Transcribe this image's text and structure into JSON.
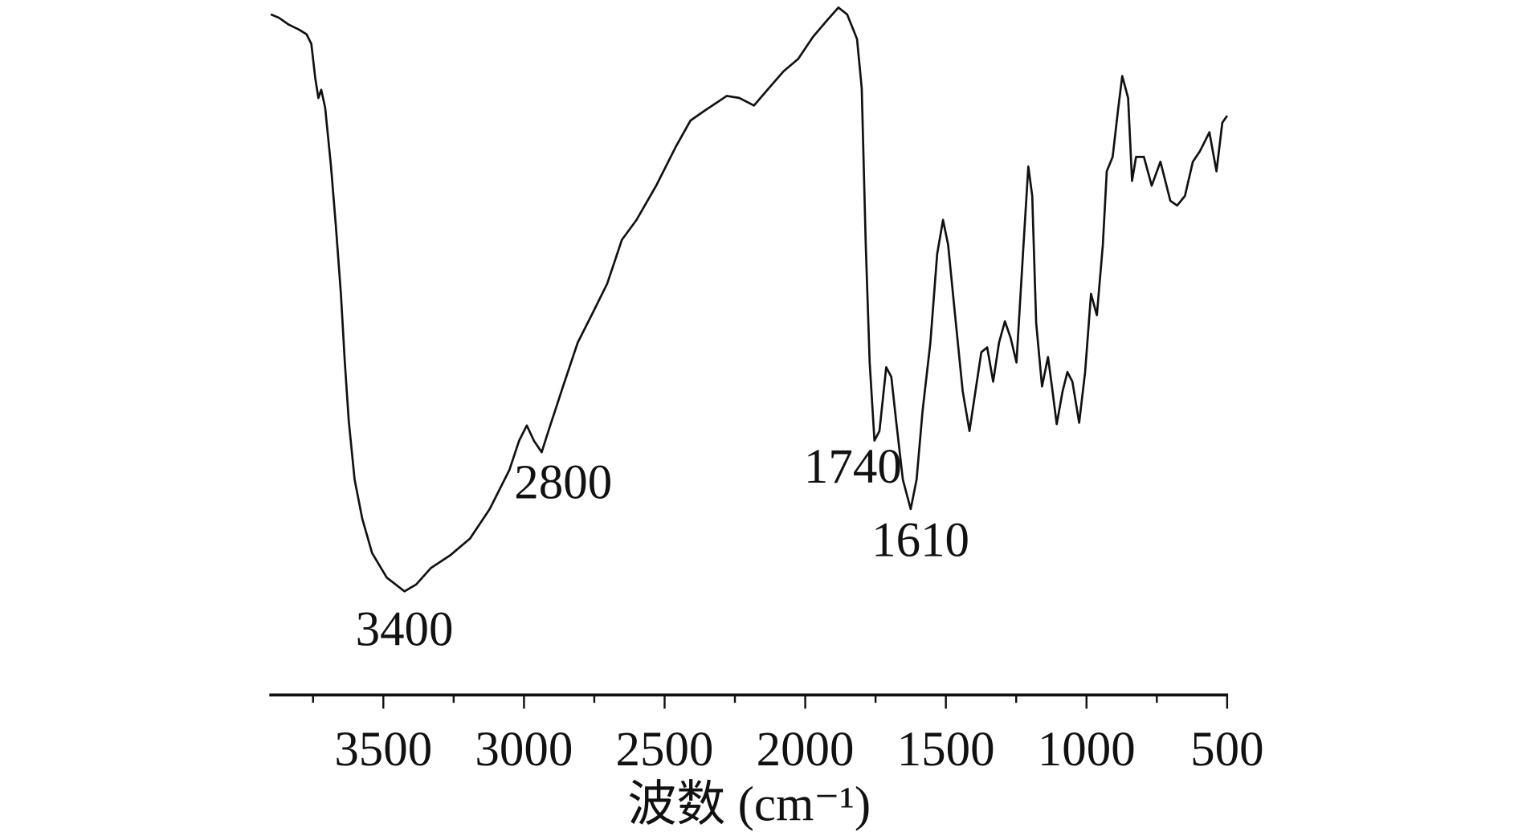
{
  "chart_data": {
    "type": "line",
    "title": "",
    "xlabel": "波数 (cm⁻¹)",
    "ylabel": "",
    "xlim": [
      3900,
      500
    ],
    "x_reversed": true,
    "ylim": [
      0,
      100
    ],
    "y_axis_shown": false,
    "grid": false,
    "line_color": "#111111",
    "x_ticks": [
      3500,
      3000,
      2500,
      2000,
      1500,
      1000,
      500
    ],
    "x_tick_labels": [
      "3500",
      "3000",
      "2500",
      "2000",
      "1500",
      "1000",
      "500"
    ],
    "x_minor_ticks": [
      3750,
      3250,
      2750,
      2250,
      1750,
      1250,
      750
    ],
    "annotations": [
      {
        "text": "3400",
        "x": 3425,
        "y": 13.7
      },
      {
        "text": "2800",
        "x": 2937,
        "y": 34
      },
      {
        "text": "1740",
        "x": 1754,
        "y": 35.7
      },
      {
        "text": "1610",
        "x": 1625,
        "y": 25.7
      }
    ],
    "series": [
      {
        "x": [
          3900,
          3871,
          3836,
          3801,
          3773,
          3756,
          3742,
          3731,
          3721,
          3707,
          3686,
          3669,
          3651,
          3637,
          3623,
          3602,
          3575,
          3540,
          3488,
          3425,
          3383,
          3331,
          3261,
          3192,
          3122,
          3052,
          3017,
          2990,
          2965,
          2937,
          2913,
          2861,
          2809,
          2756,
          2704,
          2652,
          2600,
          2530,
          2460,
          2408,
          2356,
          2279,
          2234,
          2182,
          2130,
          2077,
          2025,
          1973,
          1921,
          1882,
          1851,
          1816,
          1799,
          1785,
          1771,
          1754,
          1736,
          1712,
          1694,
          1677,
          1653,
          1625,
          1604,
          1583,
          1555,
          1531,
          1510,
          1492,
          1468,
          1440,
          1416,
          1395,
          1374,
          1353,
          1332,
          1311,
          1290,
          1270,
          1249,
          1224,
          1207,
          1193,
          1179,
          1158,
          1137,
          1123,
          1106,
          1085,
          1068,
          1050,
          1026,
          1005,
          984,
          963,
          942,
          928,
          907,
          887,
          873,
          852,
          838,
          824,
          796,
          768,
          737,
          702,
          678,
          650,
          622,
          597,
          563,
          538,
          517,
          500
        ],
        "y": [
          97.9,
          97.4,
          96.4,
          95.7,
          95,
          93.6,
          88.6,
          85.7,
          86.9,
          84.3,
          75.7,
          67.1,
          57.1,
          47.1,
          38.6,
          30,
          24.3,
          19.3,
          15.7,
          13.7,
          14.7,
          17.1,
          19,
          21.4,
          25.7,
          31.4,
          35.7,
          37.9,
          35.7,
          34,
          37.1,
          43.6,
          50,
          54.3,
          58.6,
          65,
          67.9,
          72.9,
          78.6,
          82.4,
          83.9,
          86,
          85.7,
          84.6,
          87.1,
          89.6,
          91.4,
          94.6,
          97.1,
          98.9,
          97.9,
          94.3,
          87.1,
          64.3,
          47.1,
          35.7,
          37.1,
          46.4,
          45,
          38.6,
          30,
          25.7,
          30,
          40,
          50,
          62.9,
          67.9,
          64.3,
          54.3,
          42.9,
          37.1,
          42.9,
          48.6,
          49.3,
          44.3,
          50,
          53.1,
          50.7,
          47.1,
          64.3,
          75.7,
          71.4,
          52.9,
          43.6,
          47.9,
          43.6,
          38.1,
          42.9,
          45.7,
          44.3,
          38.3,
          45.7,
          57.1,
          54,
          64.3,
          75,
          77.1,
          84.3,
          88.9,
          85.7,
          73.6,
          77.1,
          77.1,
          72.9,
          76.4,
          70.7,
          70,
          71.4,
          76.4,
          77.9,
          80.7,
          75,
          82.1,
          83.1
        ]
      }
    ]
  }
}
